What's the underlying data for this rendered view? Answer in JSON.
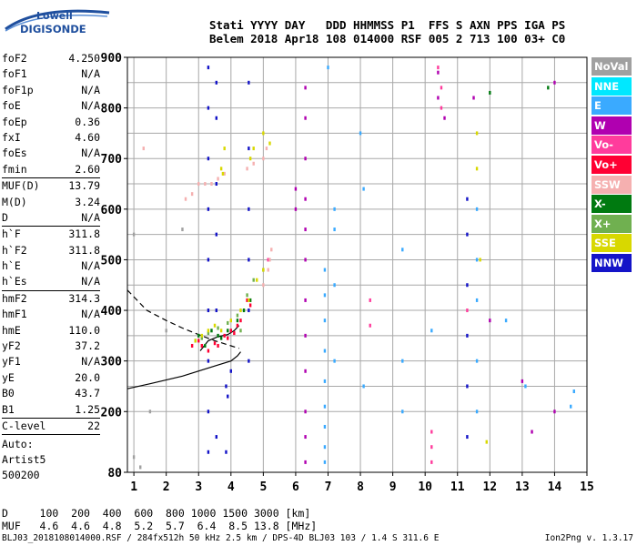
{
  "logo": {
    "line1": "Lowell",
    "line2": "DIGISONDE"
  },
  "header": {
    "labels": "Stati YYYY DAY   DDD HHMMSS P1  FFS S AXN PPS IGA PS",
    "values": "Belem 2018 Apr18 108 014000 RSF 005 2 713 100 03+ C0"
  },
  "params": [
    [
      {
        "label": "foF2",
        "value": "4.250"
      },
      {
        "label": "foF1",
        "value": "N/A"
      },
      {
        "label": "foF1p",
        "value": "N/A"
      },
      {
        "label": "foE",
        "value": "N/A"
      },
      {
        "label": "foEp",
        "value": "0.36"
      },
      {
        "label": "fxI",
        "value": "4.60"
      },
      {
        "label": "foEs",
        "value": "N/A"
      },
      {
        "label": "fmin",
        "value": "2.60"
      }
    ],
    [
      {
        "label": "MUF(D)",
        "value": "13.79"
      },
      {
        "label": "M(D)",
        "value": "3.24"
      },
      {
        "label": "D",
        "value": "N/A"
      }
    ],
    [
      {
        "label": "h`F",
        "value": "311.8"
      },
      {
        "label": "h`F2",
        "value": "311.8"
      },
      {
        "label": "h`E",
        "value": "N/A"
      },
      {
        "label": "h`Es",
        "value": "N/A"
      }
    ],
    [
      {
        "label": "hmF2",
        "value": "314.3"
      },
      {
        "label": "hmF1",
        "value": "N/A"
      },
      {
        "label": "hmE",
        "value": "110.0"
      },
      {
        "label": "yF2",
        "value": "37.2"
      },
      {
        "label": "yF1",
        "value": "N/A"
      },
      {
        "label": "yE",
        "value": "20.0"
      },
      {
        "label": "B0",
        "value": "43.7"
      },
      {
        "label": "B1",
        "value": "1.25"
      }
    ],
    [
      {
        "label": "C-level",
        "value": "22"
      }
    ]
  ],
  "auto": {
    "line1": "Auto:",
    "line2": "Artist5",
    "line3": "500200"
  },
  "scale": {
    "d_line": "D     100  200  400  600  800 1000 1500 3000 [km]",
    "muf_line": "MUF   4.6  4.6  4.8  5.2  5.7  6.4  8.5 13.8 [MHz]"
  },
  "footer": {
    "file_info": "BLJ03_2018108014000.RSF / 284fx512h 50 kHz 2.5 km / DPS-4D BLJ03 103 / 1.4 S 311.6 E",
    "version": "Ion2Png v. 1.3.17"
  },
  "legend": [
    {
      "label": "NoVal",
      "color": "#a0a0a0"
    },
    {
      "label": "NNE",
      "color": "#00e8ff"
    },
    {
      "label": "E",
      "color": "#3aaaff"
    },
    {
      "label": "W",
      "color": "#b000b0"
    },
    {
      "label": "Vo-",
      "color": "#ff3c9c"
    },
    {
      "label": "Vo+",
      "color": "#ff0033"
    },
    {
      "label": "SSW",
      "color": "#f5b0b0"
    },
    {
      "label": "X-",
      "color": "#007a10"
    },
    {
      "label": "X+",
      "color": "#70b050"
    },
    {
      "label": "SSE",
      "color": "#d8d800"
    },
    {
      "label": "NNW",
      "color": "#1414c8"
    }
  ],
  "chart_data": {
    "type": "scatter",
    "xlim": [
      0.8,
      15
    ],
    "ylim": [
      80,
      900
    ],
    "x_ticks": [
      "1",
      "2",
      "3",
      "4",
      "5",
      "6",
      "7",
      "8",
      "9",
      "10",
      "11",
      "12",
      "13",
      "14",
      "15"
    ],
    "y_ticks": [
      "80",
      "200",
      "300",
      "400",
      "500",
      "600",
      "700",
      "800",
      "900"
    ],
    "x_grid": [
      1,
      2,
      3,
      4,
      5,
      6,
      7,
      8,
      9,
      10,
      11,
      12,
      13,
      14,
      15
    ],
    "y_grid": [
      200,
      250,
      300,
      350,
      400,
      450,
      500,
      550,
      600,
      650,
      700,
      750,
      800,
      850,
      900
    ],
    "grid": true,
    "series": [
      {
        "color": "#1414c8",
        "points": [
          [
            3.3,
            120
          ],
          [
            3.3,
            200
          ],
          [
            3.3,
            300
          ],
          [
            3.3,
            400
          ],
          [
            3.3,
            500
          ],
          [
            3.3,
            600
          ],
          [
            3.3,
            700
          ],
          [
            3.3,
            800
          ],
          [
            3.3,
            880
          ],
          [
            3.55,
            150
          ],
          [
            3.55,
            400
          ],
          [
            3.55,
            550
          ],
          [
            3.55,
            650
          ],
          [
            3.55,
            780
          ],
          [
            3.55,
            850
          ],
          [
            4.55,
            300
          ],
          [
            4.55,
            400
          ],
          [
            4.55,
            500
          ],
          [
            4.55,
            600
          ],
          [
            4.55,
            720
          ],
          [
            4.55,
            850
          ],
          [
            11.3,
            150
          ],
          [
            11.3,
            250
          ],
          [
            11.3,
            350
          ],
          [
            11.3,
            450
          ],
          [
            11.3,
            550
          ],
          [
            11.3,
            620
          ],
          [
            3.85,
            120
          ],
          [
            3.85,
            250
          ],
          [
            4.0,
            280
          ],
          [
            3.9,
            230
          ]
        ]
      },
      {
        "color": "#3aaaff",
        "points": [
          [
            6.9,
            100
          ],
          [
            6.9,
            130
          ],
          [
            6.9,
            170
          ],
          [
            6.9,
            210
          ],
          [
            6.9,
            260
          ],
          [
            6.9,
            320
          ],
          [
            6.9,
            380
          ],
          [
            6.9,
            430
          ],
          [
            6.9,
            480
          ],
          [
            7.2,
            300
          ],
          [
            7.2,
            450
          ],
          [
            7.2,
            560
          ],
          [
            7.2,
            600
          ],
          [
            9.3,
            200
          ],
          [
            9.3,
            300
          ],
          [
            9.3,
            520
          ],
          [
            11.6,
            200
          ],
          [
            11.6,
            300
          ],
          [
            11.6,
            420
          ],
          [
            11.6,
            500
          ],
          [
            11.6,
            600
          ],
          [
            12.5,
            380
          ],
          [
            13.1,
            250
          ],
          [
            14.5,
            210
          ],
          [
            14.6,
            240
          ],
          [
            8.1,
            640
          ],
          [
            8.0,
            750
          ],
          [
            7.0,
            880
          ],
          [
            8.1,
            250
          ],
          [
            10.2,
            360
          ]
        ]
      },
      {
        "color": "#b000b0",
        "points": [
          [
            6.3,
            100
          ],
          [
            6.3,
            150
          ],
          [
            6.3,
            200
          ],
          [
            6.3,
            280
          ],
          [
            6.3,
            350
          ],
          [
            6.3,
            420
          ],
          [
            6.3,
            500
          ],
          [
            6.3,
            560
          ],
          [
            6.3,
            620
          ],
          [
            6.3,
            700
          ],
          [
            6.3,
            780
          ],
          [
            6.3,
            840
          ],
          [
            10.4,
            820
          ],
          [
            10.4,
            870
          ],
          [
            10.6,
            780
          ],
          [
            11.5,
            820
          ],
          [
            12.0,
            380
          ],
          [
            13.3,
            160
          ],
          [
            14.0,
            200
          ],
          [
            13.0,
            260
          ],
          [
            14.0,
            850
          ],
          [
            6.0,
            640
          ],
          [
            6.0,
            600
          ]
        ]
      },
      {
        "color": "#ff3c9c",
        "points": [
          [
            10.2,
            130
          ],
          [
            10.2,
            100
          ],
          [
            10.2,
            160
          ],
          [
            10.4,
            880
          ],
          [
            10.5,
            840
          ],
          [
            10.5,
            800
          ],
          [
            5.15,
            500
          ],
          [
            8.3,
            420
          ],
          [
            8.3,
            370
          ],
          [
            11.3,
            400
          ]
        ]
      },
      {
        "color": "#ff0033",
        "points": [
          [
            3.0,
            340
          ],
          [
            3.3,
            320
          ],
          [
            3.6,
            330
          ],
          [
            3.8,
            350
          ],
          [
            4.0,
            360
          ],
          [
            4.2,
            370
          ],
          [
            4.3,
            380
          ],
          [
            4.5,
            420
          ],
          [
            4.6,
            410
          ],
          [
            2.8,
            330
          ],
          [
            3.1,
            330
          ],
          [
            3.5,
            335
          ],
          [
            3.9,
            345
          ],
          [
            4.1,
            355
          ]
        ]
      },
      {
        "color": "#f5b0b0",
        "points": [
          [
            2.6,
            620
          ],
          [
            2.8,
            630
          ],
          [
            3.0,
            650
          ],
          [
            3.2,
            650
          ],
          [
            3.6,
            660
          ],
          [
            3.8,
            670
          ],
          [
            4.5,
            680
          ],
          [
            4.7,
            690
          ],
          [
            5.0,
            700
          ],
          [
            5.1,
            720
          ],
          [
            5.15,
            480
          ],
          [
            5.2,
            500
          ],
          [
            5.25,
            520
          ],
          [
            5.0,
            450
          ],
          [
            1.3,
            720
          ],
          [
            3.4,
            650
          ]
        ]
      },
      {
        "color": "#007a10",
        "points": [
          [
            3.0,
            350
          ],
          [
            3.2,
            330
          ],
          [
            3.4,
            360
          ],
          [
            3.6,
            350
          ],
          [
            3.9,
            360
          ],
          [
            4.2,
            380
          ],
          [
            4.4,
            400
          ],
          [
            4.6,
            420
          ],
          [
            12.0,
            830
          ],
          [
            13.8,
            840
          ],
          [
            2.9,
            340
          ],
          [
            3.7,
            345
          ]
        ]
      },
      {
        "color": "#70b050",
        "points": [
          [
            3.1,
            345
          ],
          [
            3.3,
            355
          ],
          [
            3.6,
            365
          ],
          [
            3.9,
            375
          ],
          [
            4.2,
            390
          ],
          [
            4.5,
            430
          ],
          [
            4.7,
            460
          ],
          [
            5.0,
            480
          ],
          [
            4.3,
            360
          ]
        ]
      },
      {
        "color": "#d8d800",
        "points": [
          [
            2.9,
            340
          ],
          [
            3.1,
            350
          ],
          [
            3.3,
            360
          ],
          [
            3.5,
            370
          ],
          [
            3.7,
            360
          ],
          [
            4.0,
            380
          ],
          [
            4.3,
            400
          ],
          [
            4.55,
            420
          ],
          [
            4.8,
            460
          ],
          [
            5.0,
            480
          ],
          [
            3.7,
            680
          ],
          [
            3.8,
            720
          ],
          [
            4.6,
            700
          ],
          [
            4.7,
            720
          ],
          [
            5.0,
            750
          ],
          [
            5.2,
            730
          ],
          [
            11.6,
            750
          ],
          [
            11.6,
            680
          ],
          [
            11.7,
            500
          ],
          [
            11.9,
            140
          ],
          [
            3.75,
            670
          ]
        ]
      },
      {
        "color": "#a0a0a0",
        "points": [
          [
            1.2,
            90
          ],
          [
            1.0,
            110
          ],
          [
            2.0,
            360
          ],
          [
            2.5,
            560
          ],
          [
            1.5,
            200
          ],
          [
            1.0,
            550
          ]
        ]
      }
    ],
    "lines": [
      {
        "style": "solid",
        "points": [
          [
            0.8,
            245
          ],
          [
            1.5,
            255
          ],
          [
            2.5,
            270
          ],
          [
            3.5,
            290
          ],
          [
            4.0,
            300
          ],
          [
            4.2,
            310
          ],
          [
            4.3,
            318
          ]
        ]
      },
      {
        "style": "dashed",
        "points": [
          [
            0.8,
            440
          ],
          [
            1.4,
            400
          ],
          [
            2.0,
            380
          ],
          [
            2.5,
            365
          ],
          [
            3.0,
            352
          ],
          [
            3.5,
            340
          ],
          [
            4.0,
            330
          ],
          [
            4.25,
            325
          ]
        ]
      },
      {
        "style": "solid",
        "points": [
          [
            3.05,
            320
          ],
          [
            3.3,
            340
          ],
          [
            3.6,
            348
          ],
          [
            3.9,
            352
          ],
          [
            4.1,
            360
          ],
          [
            4.25,
            370
          ]
        ]
      }
    ]
  }
}
